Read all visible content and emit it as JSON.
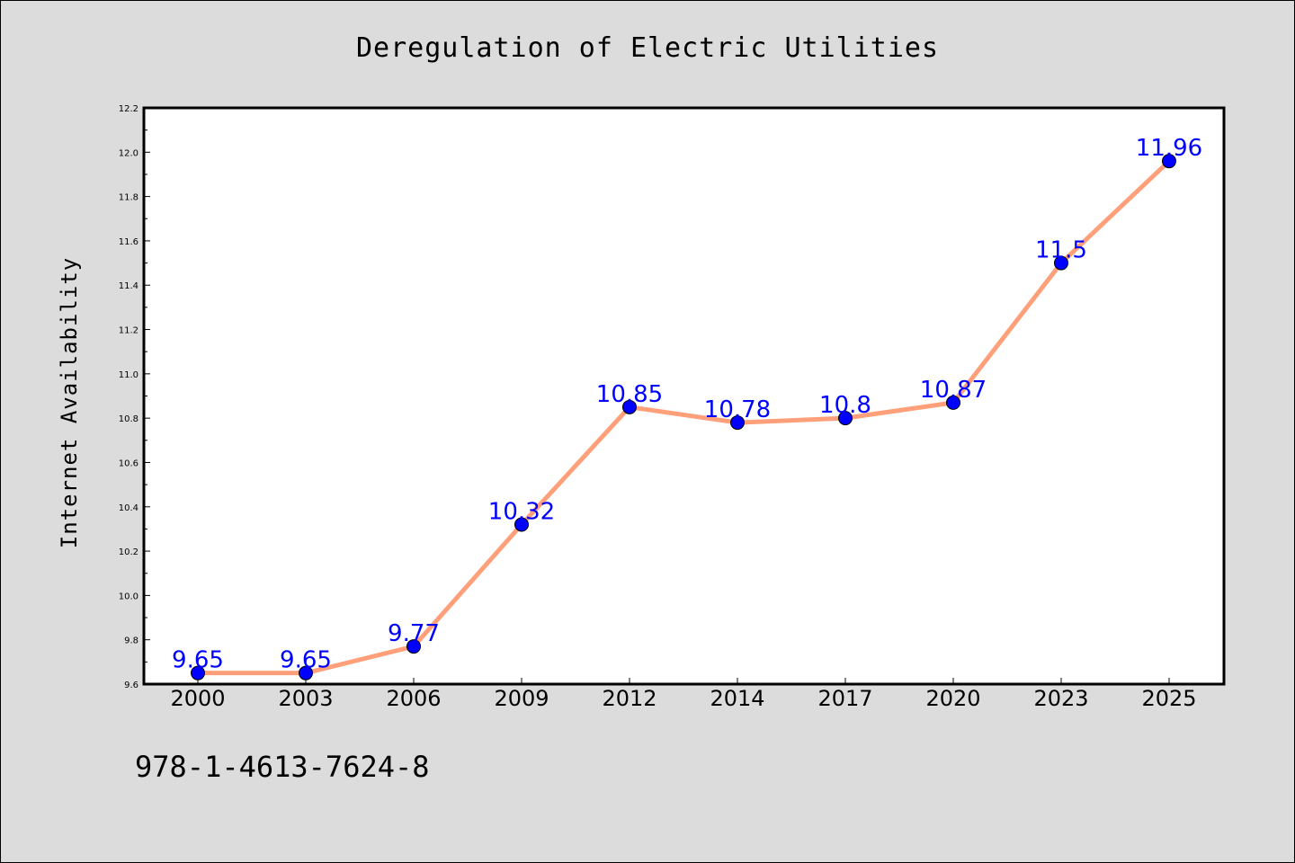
{
  "chart_data": {
    "type": "line",
    "title": "Deregulation of Electric Utilities",
    "xlabel": "",
    "ylabel": "Internet Availability",
    "categories": [
      "2000",
      "2003",
      "2006",
      "2009",
      "2012",
      "2014",
      "2017",
      "2020",
      "2023",
      "2025"
    ],
    "series": [
      {
        "values": [
          9.65,
          9.65,
          9.77,
          10.32,
          10.85,
          10.78,
          10.8,
          10.87,
          11.5,
          11.96
        ],
        "data_labels": [
          "9.65",
          "9.65",
          "9.77",
          "10.32",
          "10.85",
          "10.78",
          "10.8",
          "10.87",
          "11.5",
          "11.96"
        ],
        "line_color": "#ffa07a",
        "marker_color": "#0000ff"
      }
    ],
    "ylim": [
      9.6,
      12.2
    ],
    "y_tick_labels": [
      "9.6",
      "9.8",
      "10.0",
      "10.2",
      "10.4",
      "10.6",
      "10.8",
      "11.0",
      "11.2",
      "11.4",
      "11.6",
      "11.8",
      "12.0",
      "12.2"
    ],
    "grid": false,
    "legend": "none",
    "background_color": "#dcdcdc",
    "plot_background_color": "#ffffff",
    "label_color": "#0000ff"
  },
  "footer_code": "978-1-4613-7624-8"
}
